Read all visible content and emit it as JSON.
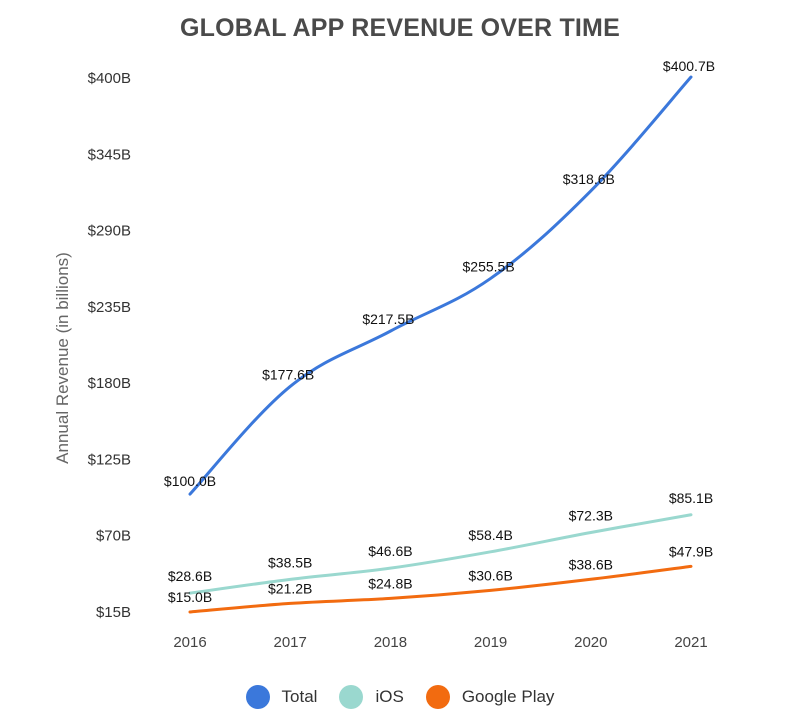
{
  "chart_data": {
    "type": "line",
    "title": "GLOBAL APP REVENUE OVER TIME",
    "xlabel": "",
    "ylabel": "Annual Revenue (in billions)",
    "categories": [
      "2016",
      "2017",
      "2018",
      "2019",
      "2020",
      "2021"
    ],
    "ylim": [
      15,
      400
    ],
    "yticks": [
      15,
      70,
      125,
      180,
      235,
      290,
      345,
      400
    ],
    "ytick_labels": [
      "$15B",
      "$70B",
      "$125B",
      "$180B",
      "$235B",
      "$290B",
      "$345B",
      "$400B"
    ],
    "grid": false,
    "legend_position": "bottom-center",
    "series": [
      {
        "name": "Total",
        "color": "#3b78db",
        "values": [
          100.0,
          177.6,
          217.5,
          255.5,
          318.6,
          400.7
        ],
        "labels": [
          "$100.0B",
          "$177.6B",
          "$217.5B",
          "$255.5B",
          "$318.6B",
          "$400.7B"
        ]
      },
      {
        "name": "iOS",
        "color": "#9ad8cf",
        "values": [
          28.6,
          38.5,
          46.6,
          58.4,
          72.3,
          85.1
        ],
        "labels": [
          "$28.6B",
          "$38.5B",
          "$46.6B",
          "$58.4B",
          "$72.3B",
          "$85.1B"
        ]
      },
      {
        "name": "Google Play",
        "color": "#f26b10",
        "values": [
          15.0,
          21.2,
          24.8,
          30.6,
          38.6,
          47.9
        ],
        "labels": [
          "$15.0B",
          "$21.2B",
          "$24.8B",
          "$30.6B",
          "$38.6B",
          "$47.9B"
        ]
      }
    ]
  }
}
